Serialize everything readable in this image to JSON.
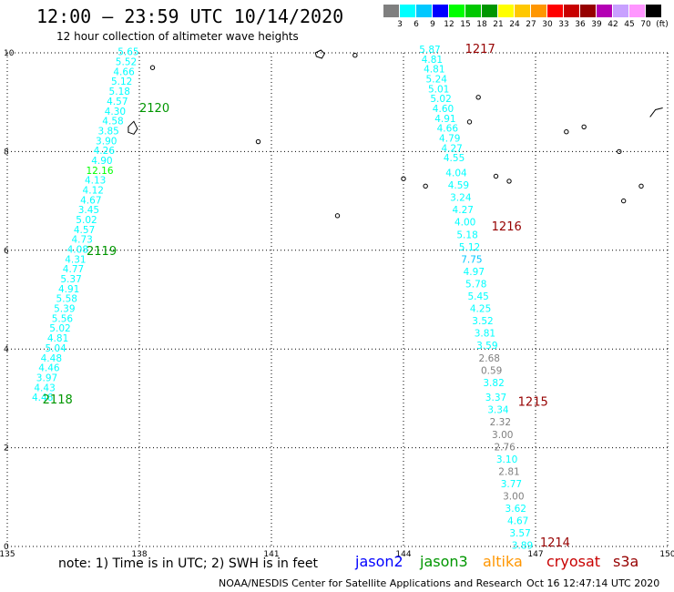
{
  "title": "12:00 – 23:59 UTC 10/14/2020",
  "subtitle": "12 hour collection of altimeter wave heights",
  "note": "note:  1) Time is in UTC;  2) SWH is in feet",
  "credit": "NOAA/NESDIS Center for Satellite Applications and Research",
  "generated": "Oct 16 12:47:14 UTC 2020",
  "legend": {
    "colors": [
      "#7f7f7f",
      "#00ffff",
      "#00c8ff",
      "#0000ff",
      "#00ff00",
      "#00c800",
      "#009600",
      "#ffff00",
      "#ffc800",
      "#ff9600",
      "#ff0000",
      "#c80000",
      "#960000",
      "#b400b4",
      "#c8a0ff",
      "#ff96ff",
      "#000000"
    ],
    "labels": [
      "3",
      "6",
      "9",
      "12",
      "15",
      "18",
      "21",
      "24",
      "27",
      "30",
      "33",
      "36",
      "39",
      "42",
      "45",
      "70",
      "(ft)"
    ]
  },
  "satellites": [
    {
      "name": "jason2",
      "color": "#0000ff"
    },
    {
      "name": "jason3",
      "color": "#009600"
    },
    {
      "name": "altika",
      "color": "#ff9600"
    },
    {
      "name": "cryosat",
      "color": "#c80000"
    },
    {
      "name": "s3a",
      "color": "#960000"
    }
  ],
  "map": {
    "lon_range": [
      135,
      150
    ],
    "lat_range": [
      0,
      10
    ],
    "lon_ticks": [
      "135",
      "138",
      "141",
      "144",
      "147",
      "150"
    ],
    "lat_ticks": [
      "0",
      "2",
      "4",
      "6",
      "8",
      "10"
    ],
    "grid": true
  },
  "passes": [
    {
      "id": "jason3-west",
      "satellite": "jason3",
      "color": "#009600",
      "times": [
        {
          "label": "2120",
          "lon": 138,
          "lat": 8.8
        },
        {
          "label": "2119",
          "lon": 136.8,
          "lat": 5.9
        },
        {
          "label": "2118",
          "lon": 135.8,
          "lat": 2.9
        }
      ],
      "swh": [
        {
          "v": "5.65",
          "lon": 137.75,
          "lat": 9.95,
          "c": "#00ffff"
        },
        {
          "v": "5.52",
          "lon": 137.7,
          "lat": 9.75,
          "c": "#00ffff"
        },
        {
          "v": "4.66",
          "lon": 137.65,
          "lat": 9.55,
          "c": "#00ffff"
        },
        {
          "v": "5.12",
          "lon": 137.6,
          "lat": 9.35,
          "c": "#00ffff"
        },
        {
          "v": "5.18",
          "lon": 137.55,
          "lat": 9.15,
          "c": "#00ffff"
        },
        {
          "v": "4.57",
          "lon": 137.5,
          "lat": 8.95,
          "c": "#00ffff"
        },
        {
          "v": "4.30",
          "lon": 137.45,
          "lat": 8.75,
          "c": "#00ffff"
        },
        {
          "v": "4.58",
          "lon": 137.4,
          "lat": 8.55,
          "c": "#00ffff"
        },
        {
          "v": "3.85",
          "lon": 137.3,
          "lat": 8.35,
          "c": "#00ffff"
        },
        {
          "v": "3.90",
          "lon": 137.25,
          "lat": 8.15,
          "c": "#00ffff"
        },
        {
          "v": "4.26",
          "lon": 137.2,
          "lat": 7.95,
          "c": "#00ffff"
        },
        {
          "v": "4.90",
          "lon": 137.15,
          "lat": 7.75,
          "c": "#00ffff"
        },
        {
          "v": "12.16",
          "lon": 137.1,
          "lat": 7.55,
          "c": "#00ff00"
        },
        {
          "v": "4.13",
          "lon": 137.0,
          "lat": 7.35,
          "c": "#00ffff"
        },
        {
          "v": "4.12",
          "lon": 136.95,
          "lat": 7.15,
          "c": "#00ffff"
        },
        {
          "v": "4.67",
          "lon": 136.9,
          "lat": 6.95,
          "c": "#00ffff"
        },
        {
          "v": "3.45",
          "lon": 136.85,
          "lat": 6.75,
          "c": "#00ffff"
        },
        {
          "v": "5.02",
          "lon": 136.8,
          "lat": 6.55,
          "c": "#00ffff"
        },
        {
          "v": "4.57",
          "lon": 136.75,
          "lat": 6.35,
          "c": "#00ffff"
        },
        {
          "v": "4.73",
          "lon": 136.7,
          "lat": 6.15,
          "c": "#00ffff"
        },
        {
          "v": "4.08",
          "lon": 136.6,
          "lat": 5.95,
          "c": "#00ffff"
        },
        {
          "v": "4.31",
          "lon": 136.55,
          "lat": 5.75,
          "c": "#00ffff"
        },
        {
          "v": "4.77",
          "lon": 136.5,
          "lat": 5.55,
          "c": "#00ffff"
        },
        {
          "v": "5.37",
          "lon": 136.45,
          "lat": 5.35,
          "c": "#00ffff"
        },
        {
          "v": "4.91",
          "lon": 136.4,
          "lat": 5.15,
          "c": "#00ffff"
        },
        {
          "v": "5.58",
          "lon": 136.35,
          "lat": 4.95,
          "c": "#00ffff"
        },
        {
          "v": "5.39",
          "lon": 136.3,
          "lat": 4.75,
          "c": "#00ffff"
        },
        {
          "v": "5.56",
          "lon": 136.25,
          "lat": 4.55,
          "c": "#00ffff"
        },
        {
          "v": "5.02",
          "lon": 136.2,
          "lat": 4.35,
          "c": "#00ffff"
        },
        {
          "v": "4.81",
          "lon": 136.15,
          "lat": 4.15,
          "c": "#00ffff"
        },
        {
          "v": "5.04",
          "lon": 136.1,
          "lat": 3.95,
          "c": "#00ffff"
        },
        {
          "v": "4.48",
          "lon": 136.0,
          "lat": 3.75,
          "c": "#00ffff"
        },
        {
          "v": "4.46",
          "lon": 135.95,
          "lat": 3.55,
          "c": "#00ffff"
        },
        {
          "v": "3.97",
          "lon": 135.9,
          "lat": 3.35,
          "c": "#00ffff"
        },
        {
          "v": "4.43",
          "lon": 135.85,
          "lat": 3.15,
          "c": "#00ffff"
        },
        {
          "v": "4.46",
          "lon": 135.8,
          "lat": 2.95,
          "c": "#00ffff"
        }
      ]
    },
    {
      "id": "s3a-east",
      "satellite": "s3a",
      "color": "#960000",
      "times": [
        {
          "label": "1217",
          "lon": 145.4,
          "lat": 10.0
        },
        {
          "label": "1216",
          "lon": 146.0,
          "lat": 6.4
        },
        {
          "label": "1215",
          "lon": 146.6,
          "lat": 2.85
        },
        {
          "label": "1214",
          "lon": 147.1,
          "lat": 0.0
        }
      ],
      "swh": [
        {
          "v": "5.87",
          "lon": 144.6,
          "lat": 10.0,
          "c": "#00ffff"
        },
        {
          "v": "4.81",
          "lon": 144.65,
          "lat": 9.8,
          "c": "#00ffff"
        },
        {
          "v": "4.81",
          "lon": 144.7,
          "lat": 9.6,
          "c": "#00ffff"
        },
        {
          "v": "5.24",
          "lon": 144.75,
          "lat": 9.4,
          "c": "#00ffff"
        },
        {
          "v": "5.01",
          "lon": 144.8,
          "lat": 9.2,
          "c": "#00ffff"
        },
        {
          "v": "5.02",
          "lon": 144.85,
          "lat": 9.0,
          "c": "#00ffff"
        },
        {
          "v": "4.60",
          "lon": 144.9,
          "lat": 8.8,
          "c": "#00ffff"
        },
        {
          "v": "4.91",
          "lon": 144.95,
          "lat": 8.6,
          "c": "#00ffff"
        },
        {
          "v": "4.66",
          "lon": 145.0,
          "lat": 8.4,
          "c": "#00ffff"
        },
        {
          "v": "4.79",
          "lon": 145.05,
          "lat": 8.2,
          "c": "#00ffff"
        },
        {
          "v": "4.27",
          "lon": 145.1,
          "lat": 8.0,
          "c": "#00ffff"
        },
        {
          "v": "4.55",
          "lon": 145.15,
          "lat": 7.8,
          "c": "#00ffff"
        },
        {
          "v": "4.04",
          "lon": 145.2,
          "lat": 7.5,
          "c": "#00ffff"
        },
        {
          "v": "4.59",
          "lon": 145.25,
          "lat": 7.25,
          "c": "#00ffff"
        },
        {
          "v": "3.24",
          "lon": 145.3,
          "lat": 7.0,
          "c": "#00ffff"
        },
        {
          "v": "4.27",
          "lon": 145.35,
          "lat": 6.75,
          "c": "#00ffff"
        },
        {
          "v": "4.00",
          "lon": 145.4,
          "lat": 6.5,
          "c": "#00ffff"
        },
        {
          "v": "5.18",
          "lon": 145.45,
          "lat": 6.25,
          "c": "#00ffff"
        },
        {
          "v": "5.12",
          "lon": 145.5,
          "lat": 6.0,
          "c": "#00ffff"
        },
        {
          "v": "7.75",
          "lon": 145.55,
          "lat": 5.75,
          "c": "#00c8ff"
        },
        {
          "v": "4.97",
          "lon": 145.6,
          "lat": 5.5,
          "c": "#00ffff"
        },
        {
          "v": "5.78",
          "lon": 145.65,
          "lat": 5.25,
          "c": "#00ffff"
        },
        {
          "v": "5.45",
          "lon": 145.7,
          "lat": 5.0,
          "c": "#00ffff"
        },
        {
          "v": "4.25",
          "lon": 145.75,
          "lat": 4.75,
          "c": "#00ffff"
        },
        {
          "v": "3.52",
          "lon": 145.8,
          "lat": 4.5,
          "c": "#00ffff"
        },
        {
          "v": "3.81",
          "lon": 145.85,
          "lat": 4.25,
          "c": "#00ffff"
        },
        {
          "v": "3.59",
          "lon": 145.9,
          "lat": 4.0,
          "c": "#00ffff"
        },
        {
          "v": "2.68",
          "lon": 145.95,
          "lat": 3.75,
          "c": "#7f7f7f"
        },
        {
          "v": "0.59",
          "lon": 146.0,
          "lat": 3.5,
          "c": "#7f7f7f"
        },
        {
          "v": "3.82",
          "lon": 146.05,
          "lat": 3.25,
          "c": "#00ffff"
        },
        {
          "v": "3.37",
          "lon": 146.1,
          "lat": 2.95,
          "c": "#00ffff"
        },
        {
          "v": "3.34",
          "lon": 146.15,
          "lat": 2.7,
          "c": "#00ffff"
        },
        {
          "v": "2.32",
          "lon": 146.2,
          "lat": 2.45,
          "c": "#7f7f7f"
        },
        {
          "v": "3.00",
          "lon": 146.25,
          "lat": 2.2,
          "c": "#7f7f7f"
        },
        {
          "v": "2.76",
          "lon": 146.3,
          "lat": 1.95,
          "c": "#7f7f7f"
        },
        {
          "v": "3.10",
          "lon": 146.35,
          "lat": 1.7,
          "c": "#00ffff"
        },
        {
          "v": "2.81",
          "lon": 146.4,
          "lat": 1.45,
          "c": "#7f7f7f"
        },
        {
          "v": "3.77",
          "lon": 146.45,
          "lat": 1.2,
          "c": "#00ffff"
        },
        {
          "v": "3.00",
          "lon": 146.5,
          "lat": 0.95,
          "c": "#7f7f7f"
        },
        {
          "v": "3.62",
          "lon": 146.55,
          "lat": 0.7,
          "c": "#00ffff"
        },
        {
          "v": "4.67",
          "lon": 146.6,
          "lat": 0.45,
          "c": "#00ffff"
        },
        {
          "v": "3.57",
          "lon": 146.65,
          "lat": 0.2,
          "c": "#00ffff"
        },
        {
          "v": "3.89",
          "lon": 146.7,
          "lat": -0.05,
          "c": "#00ffff"
        }
      ]
    }
  ]
}
